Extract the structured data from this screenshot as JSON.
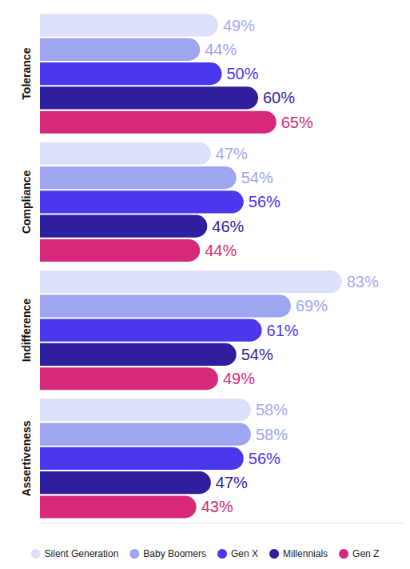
{
  "chart_data": {
    "type": "bar",
    "orientation": "horizontal",
    "categories": [
      "Tolerance",
      "Compliance",
      "Indifference",
      "Assertiveness"
    ],
    "series": [
      {
        "name": "Silent Generation",
        "color": "#dde0fa",
        "values": [
          49,
          47,
          83,
          58
        ],
        "value_labels": [
          "49%",
          "47%",
          "83%",
          "58%"
        ]
      },
      {
        "name": "Baby Boomers",
        "color": "#9da6f0",
        "values": [
          44,
          54,
          69,
          58
        ],
        "value_labels": [
          "44%",
          "54%",
          "69%",
          "58%"
        ]
      },
      {
        "name": "Gen X",
        "color": "#4b37ec",
        "values": [
          50,
          56,
          61,
          56
        ],
        "value_labels": [
          "50%",
          "56%",
          "61%",
          "56%"
        ]
      },
      {
        "name": "Millennials",
        "color": "#2e1f9e",
        "values": [
          60,
          46,
          54,
          47
        ],
        "value_labels": [
          "60%",
          "46%",
          "54%",
          "47%"
        ]
      },
      {
        "name": "Gen Z",
        "color": "#d6297a",
        "values": [
          65,
          44,
          49,
          43
        ],
        "value_labels": [
          "65%",
          "44%",
          "49%",
          "43%"
        ]
      }
    ],
    "xlim": [
      0,
      100
    ],
    "grid": false,
    "legend": "bottom",
    "data_labels": true,
    "tick_labels": "y"
  }
}
